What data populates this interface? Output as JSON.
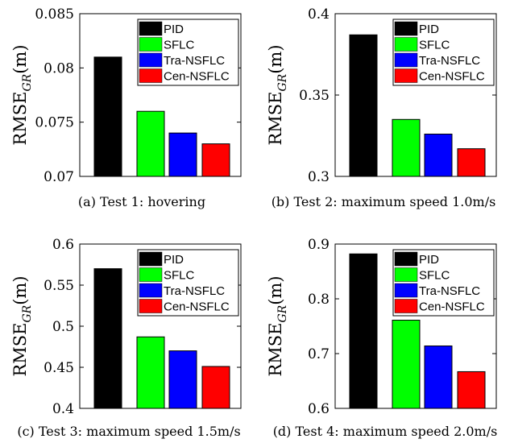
{
  "chart_data": [
    {
      "type": "bar",
      "caption": "(a) Test 1: hovering",
      "categories": [
        "PID",
        "SFLC",
        "Tra-NSFLC",
        "Cen-NSFLC"
      ],
      "values": [
        0.081,
        0.076,
        0.074,
        0.073
      ],
      "ylim": [
        0.07,
        0.085
      ],
      "yticks": [
        "0.07",
        "0.075",
        "0.08",
        "0.085"
      ],
      "ylabel": "RMSE",
      "ylabel_sub": "GR",
      "ylabel_unit": "(m)",
      "legend": "top-right"
    },
    {
      "type": "bar",
      "caption": "(b) Test 2: maximum speed 1.0m/s",
      "categories": [
        "PID",
        "SFLC",
        "Tra-NSFLC",
        "Cen-NSFLC"
      ],
      "values": [
        0.387,
        0.335,
        0.326,
        0.317
      ],
      "ylim": [
        0.3,
        0.4
      ],
      "yticks": [
        "0.3",
        "0.35",
        "0.4"
      ],
      "ylabel": "RMSE",
      "ylabel_sub": "GR",
      "ylabel_unit": "(m)",
      "legend": "top-right"
    },
    {
      "type": "bar",
      "caption": "(c) Test 3: maximum speed 1.5m/s",
      "categories": [
        "PID",
        "SFLC",
        "Tra-NSFLC",
        "Cen-NSFLC"
      ],
      "values": [
        0.57,
        0.487,
        0.47,
        0.451
      ],
      "ylim": [
        0.4,
        0.6
      ],
      "yticks": [
        "0.4",
        "0.45",
        "0.5",
        "0.55",
        "0.6"
      ],
      "ylabel": "RMSE",
      "ylabel_sub": "GR",
      "ylabel_unit": "(m)",
      "legend": "top-right"
    },
    {
      "type": "bar",
      "caption": "(d) Test 4: maximum speed 2.0m/s",
      "categories": [
        "PID",
        "SFLC",
        "Tra-NSFLC",
        "Cen-NSFLC"
      ],
      "values": [
        0.882,
        0.761,
        0.714,
        0.667
      ],
      "ylim": [
        0.6,
        0.9
      ],
      "yticks": [
        "0.6",
        "0.7",
        "0.8",
        "0.9"
      ],
      "ylabel": "RMSE",
      "ylabel_sub": "GR",
      "ylabel_unit": "(m)",
      "legend": "top-right"
    }
  ],
  "colors": {
    "PID": "#000000",
    "SFLC": "#00ff00",
    "Tra-NSFLC": "#0000ff",
    "Cen-NSFLC": "#ff0000"
  }
}
